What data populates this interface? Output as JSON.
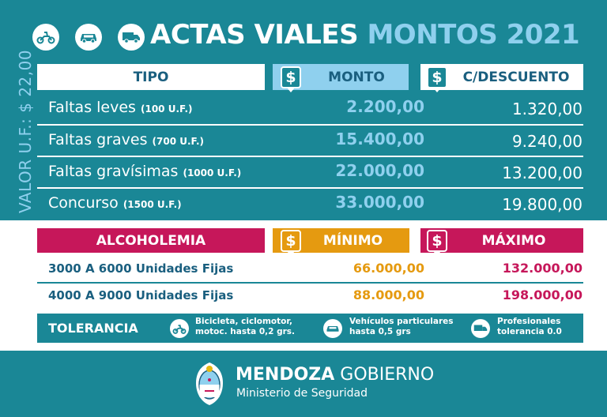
{
  "title": {
    "part1": "ACTAS VIALES",
    "part2": "MONTOS 2021"
  },
  "icons": [
    "scooter-icon",
    "car-icon",
    "truck-icon"
  ],
  "uf_value_label": "VALOR U.F.: $ 22,00",
  "fines_table": {
    "headers": {
      "tipo": "TIPO",
      "monto": "MONTO",
      "descuento": "C/DESCUENTO",
      "currency_symbol": "$"
    },
    "rows": [
      {
        "name": "Faltas leves",
        "units": "(100 U.F.)",
        "monto": "2.200,00",
        "descuento": "1.320,00"
      },
      {
        "name": "Faltas graves",
        "units": "(700 U.F.)",
        "monto": "15.400,00",
        "descuento": "9.240,00"
      },
      {
        "name": "Faltas gravísimas",
        "units": "(1000 U.F.)",
        "monto": "22.000,00",
        "descuento": "13.200,00"
      },
      {
        "name": "Concurso",
        "units": "(1500 U.F.)",
        "monto": "33.000,00",
        "descuento": "19.800,00"
      }
    ]
  },
  "alcohol_table": {
    "headers": {
      "tipo": "ALCOHOLEMIA",
      "minimo": "MÍNIMO",
      "maximo": "MÁXIMO"
    },
    "rows": [
      {
        "range": "3000 A 6000 Unidades Fijas",
        "minimo": "66.000,00",
        "maximo": "132.000,00"
      },
      {
        "range": "4000 A 9000 Unidades Fijas",
        "minimo": "88.000,00",
        "maximo": "198.000,00"
      }
    ]
  },
  "tolerance": {
    "label": "TOLERANCIA",
    "items": [
      {
        "icon": "scooter-icon",
        "line1": "Bicicleta, ciclomotor,",
        "line2": "motoc. hasta 0,2 grs."
      },
      {
        "icon": "car-icon",
        "line1": "Vehículos particulares",
        "line2": "hasta 0,5 grs"
      },
      {
        "icon": "truck-icon",
        "line1": "Profesionales",
        "line2": "tolerancia 0.0"
      }
    ]
  },
  "footer": {
    "brand_bold": "MENDOZA",
    "brand_light": "GOBIERNO",
    "ministry": "Ministerio de Seguridad"
  },
  "colors": {
    "teal": "#1a8796",
    "light_blue": "#8fd0ee",
    "magenta": "#c6175a",
    "orange": "#e59a10",
    "navy": "#1a5f7f"
  }
}
